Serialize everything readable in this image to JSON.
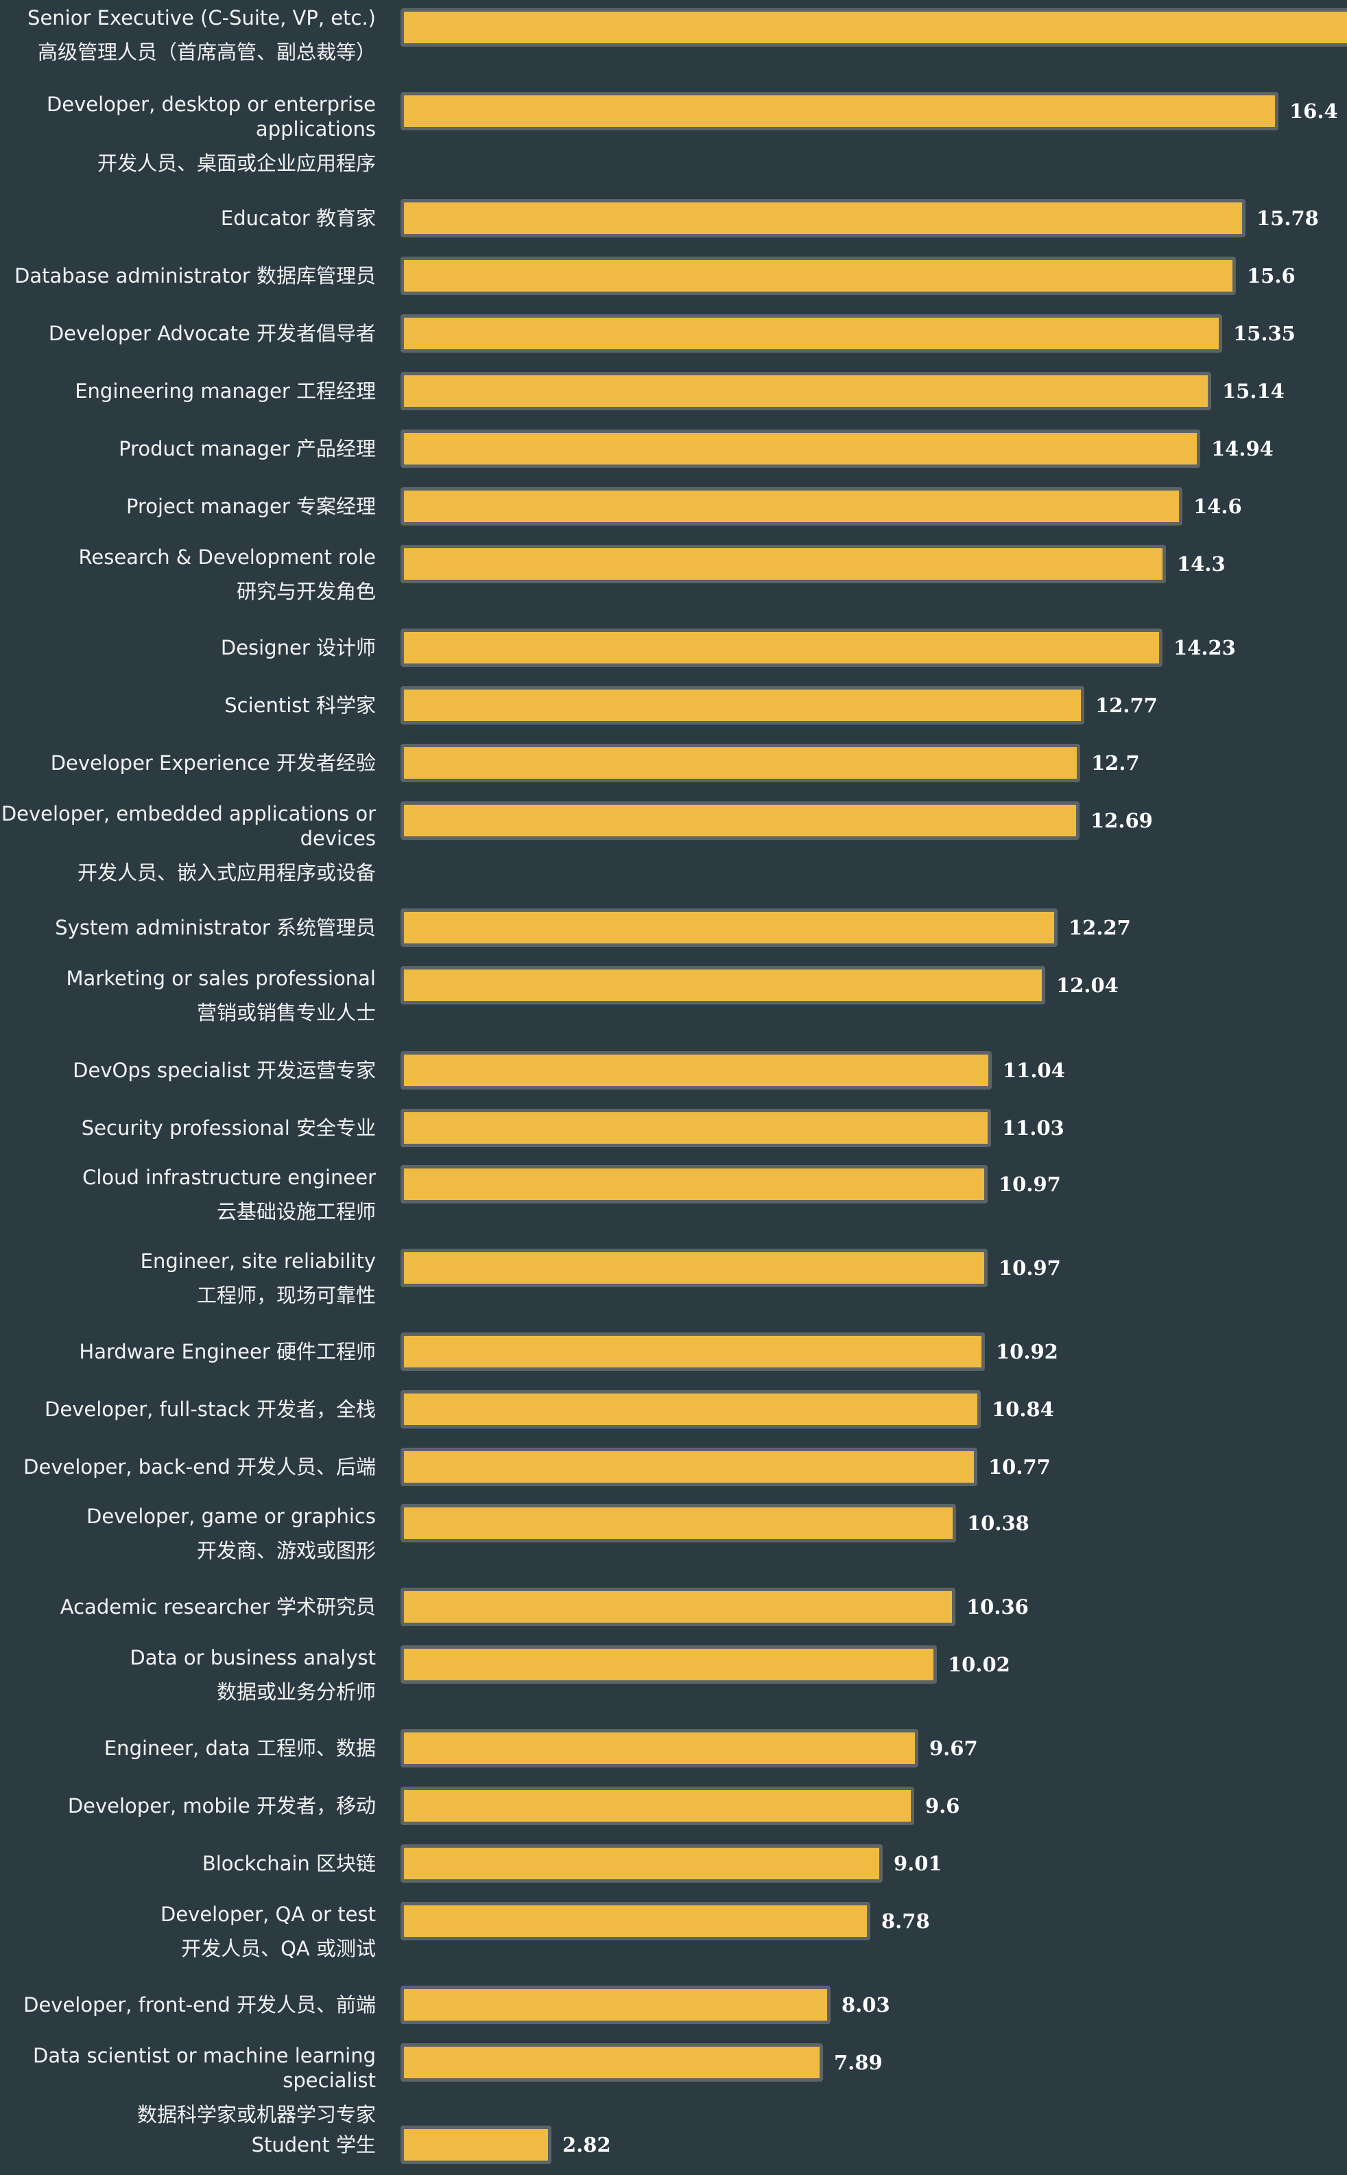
{
  "chart_data": {
    "type": "bar",
    "orientation": "horizontal",
    "colors": {
      "background": "#2c3a42",
      "bar": "#efbb42",
      "bar_border": "#5b6467"
    },
    "xlim": [
      0,
      16.4
    ],
    "bars": [
      {
        "label_en": "Senior Executive (C-Suite, VP, etc.)",
        "label_cn": "高级管理人员（首席高管、副总裁等）",
        "value": null,
        "value_label": ""
      },
      {
        "label_en": "Developer, desktop or enterprise applications",
        "label_cn": "开发人员、桌面或企业应用程序",
        "value": 16.4,
        "value_label": "16.4"
      },
      {
        "label_en": "Educator 教育家",
        "label_cn": "",
        "value": 15.78,
        "value_label": "15.78"
      },
      {
        "label_en": "Database administrator 数据库管理员",
        "label_cn": "",
        "value": 15.6,
        "value_label": "15.6"
      },
      {
        "label_en": "Developer Advocate 开发者倡导者",
        "label_cn": "",
        "value": 15.35,
        "value_label": "15.35"
      },
      {
        "label_en": "Engineering manager 工程经理",
        "label_cn": "",
        "value": 15.14,
        "value_label": "15.14"
      },
      {
        "label_en": "Product manager 产品经理",
        "label_cn": "",
        "value": 14.94,
        "value_label": "14.94"
      },
      {
        "label_en": "Project manager 专案经理",
        "label_cn": "",
        "value": 14.6,
        "value_label": "14.6"
      },
      {
        "label_en": "Research & Development role",
        "label_cn": "研究与开发角色",
        "value": 14.3,
        "value_label": "14.3"
      },
      {
        "label_en": "Designer 设计师",
        "label_cn": "",
        "value": 14.23,
        "value_label": "14.23"
      },
      {
        "label_en": "Scientist 科学家",
        "label_cn": "",
        "value": 12.77,
        "value_label": "12.77"
      },
      {
        "label_en": "Developer Experience 开发者经验",
        "label_cn": "",
        "value": 12.7,
        "value_label": "12.7"
      },
      {
        "label_en": "Developer, embedded applications or devices",
        "label_cn": "开发人员、嵌入式应用程序或设备",
        "value": 12.69,
        "value_label": "12.69"
      },
      {
        "label_en": "System administrator 系统管理员",
        "label_cn": "",
        "value": 12.27,
        "value_label": "12.27"
      },
      {
        "label_en": "Marketing or sales professional",
        "label_cn": "营销或销售专业人士",
        "value": 12.04,
        "value_label": "12.04"
      },
      {
        "label_en": "DevOps specialist 开发运营专家",
        "label_cn": "",
        "value": 11.04,
        "value_label": "11.04"
      },
      {
        "label_en": "Security professional 安全专业",
        "label_cn": "",
        "value": 11.03,
        "value_label": "11.03"
      },
      {
        "label_en": "Cloud infrastructure engineer",
        "label_cn": "云基础设施工程师",
        "value": 10.97,
        "value_label": "10.97"
      },
      {
        "label_en": "Engineer, site reliability",
        "label_cn": "工程师，现场可靠性",
        "value": 10.97,
        "value_label": "10.97"
      },
      {
        "label_en": "Hardware Engineer 硬件工程师",
        "label_cn": "",
        "value": 10.92,
        "value_label": "10.92"
      },
      {
        "label_en": "Developer, full-stack 开发者，全栈",
        "label_cn": "",
        "value": 10.84,
        "value_label": "10.84"
      },
      {
        "label_en": "Developer, back-end 开发人员、后端",
        "label_cn": "",
        "value": 10.77,
        "value_label": "10.77"
      },
      {
        "label_en": "Developer, game or graphics",
        "label_cn": "开发商、游戏或图形",
        "value": 10.38,
        "value_label": "10.38"
      },
      {
        "label_en": "Academic researcher 学术研究员",
        "label_cn": "",
        "value": 10.36,
        "value_label": "10.36"
      },
      {
        "label_en": "Data or business analyst",
        "label_cn": "数据或业务分析师",
        "value": 10.02,
        "value_label": "10.02"
      },
      {
        "label_en": "Engineer, data 工程师、数据",
        "label_cn": "",
        "value": 9.67,
        "value_label": "9.67"
      },
      {
        "label_en": "Developer, mobile 开发者，移动",
        "label_cn": "",
        "value": 9.6,
        "value_label": "9.6"
      },
      {
        "label_en": "Blockchain 区块链",
        "label_cn": "",
        "value": 9.01,
        "value_label": "9.01"
      },
      {
        "label_en": "Developer, QA or test",
        "label_cn": "开发人员、QA 或测试",
        "value": 8.78,
        "value_label": "8.78"
      },
      {
        "label_en": "Developer, front-end 开发人员、前端",
        "label_cn": "",
        "value": 8.03,
        "value_label": "8.03"
      },
      {
        "label_en": "Data scientist or machine learning specialist",
        "label_cn": "数据科学家或机器学习专家",
        "value": 7.89,
        "value_label": "7.89"
      },
      {
        "label_en": "Student 学生",
        "label_cn": "",
        "value": 2.82,
        "value_label": "2.82"
      }
    ]
  }
}
